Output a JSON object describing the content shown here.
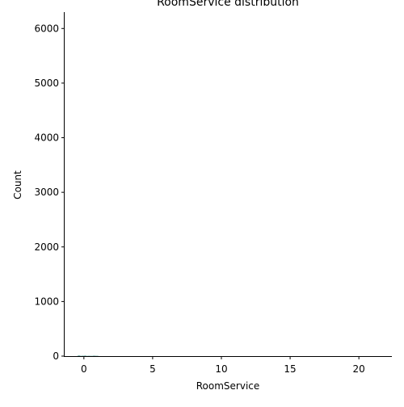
{
  "chart_data": {
    "type": "bar",
    "title": "RoomService distribution",
    "xlabel": "RoomService",
    "ylabel": "Count",
    "xlim": [
      -1.4,
      22.4
    ],
    "ylim": [
      0,
      6300
    ],
    "xticks": [
      0,
      5,
      10,
      15,
      20
    ],
    "xtick_labels": [
      "0",
      "5",
      "10",
      "15",
      "20"
    ],
    "yticks": [
      0,
      1000,
      2000,
      3000,
      4000,
      5000,
      6000
    ],
    "ytick_labels": [
      "0",
      "1000",
      "2000",
      "3000",
      "4000",
      "5000",
      "6000"
    ],
    "grid": false,
    "legend": "none",
    "colors": {
      "bars": "#4c9a92",
      "axis": "#000000",
      "background": "#ffffff"
    },
    "bins": [
      {
        "x": -0.35,
        "count": 10
      },
      {
        "x": -0.1,
        "count": 6
      },
      {
        "x": 0.1,
        "count": 8
      },
      {
        "x": 0.35,
        "count": 5
      },
      {
        "x": 0.55,
        "count": 4
      },
      {
        "x": 0.75,
        "count": 7
      },
      {
        "x": 0.95,
        "count": 5
      }
    ]
  }
}
